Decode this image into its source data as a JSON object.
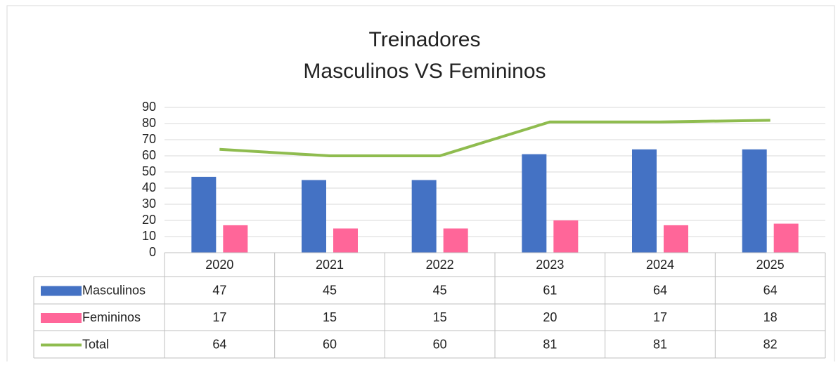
{
  "chart_data": {
    "type": "bar",
    "title": "Treinadores",
    "subtitle": "Masculinos VS Femininos",
    "categories": [
      "2020",
      "2021",
      "2022",
      "2023",
      "2024",
      "2025"
    ],
    "series": [
      {
        "name": "Masculinos",
        "color": "#4472c4",
        "values": [
          47,
          45,
          45,
          61,
          64,
          64
        ]
      },
      {
        "name": "Femininos",
        "color": "#ff6699",
        "values": [
          17,
          15,
          15,
          20,
          17,
          18
        ]
      },
      {
        "name": "Total",
        "color": "#8fbc4f",
        "type": "line",
        "values": [
          64,
          60,
          60,
          81,
          81,
          82
        ]
      }
    ],
    "ylim": [
      0,
      90
    ],
    "yticks": [
      0,
      10,
      20,
      30,
      40,
      50,
      60,
      70,
      80,
      90
    ],
    "grid": true,
    "data_table": true
  }
}
